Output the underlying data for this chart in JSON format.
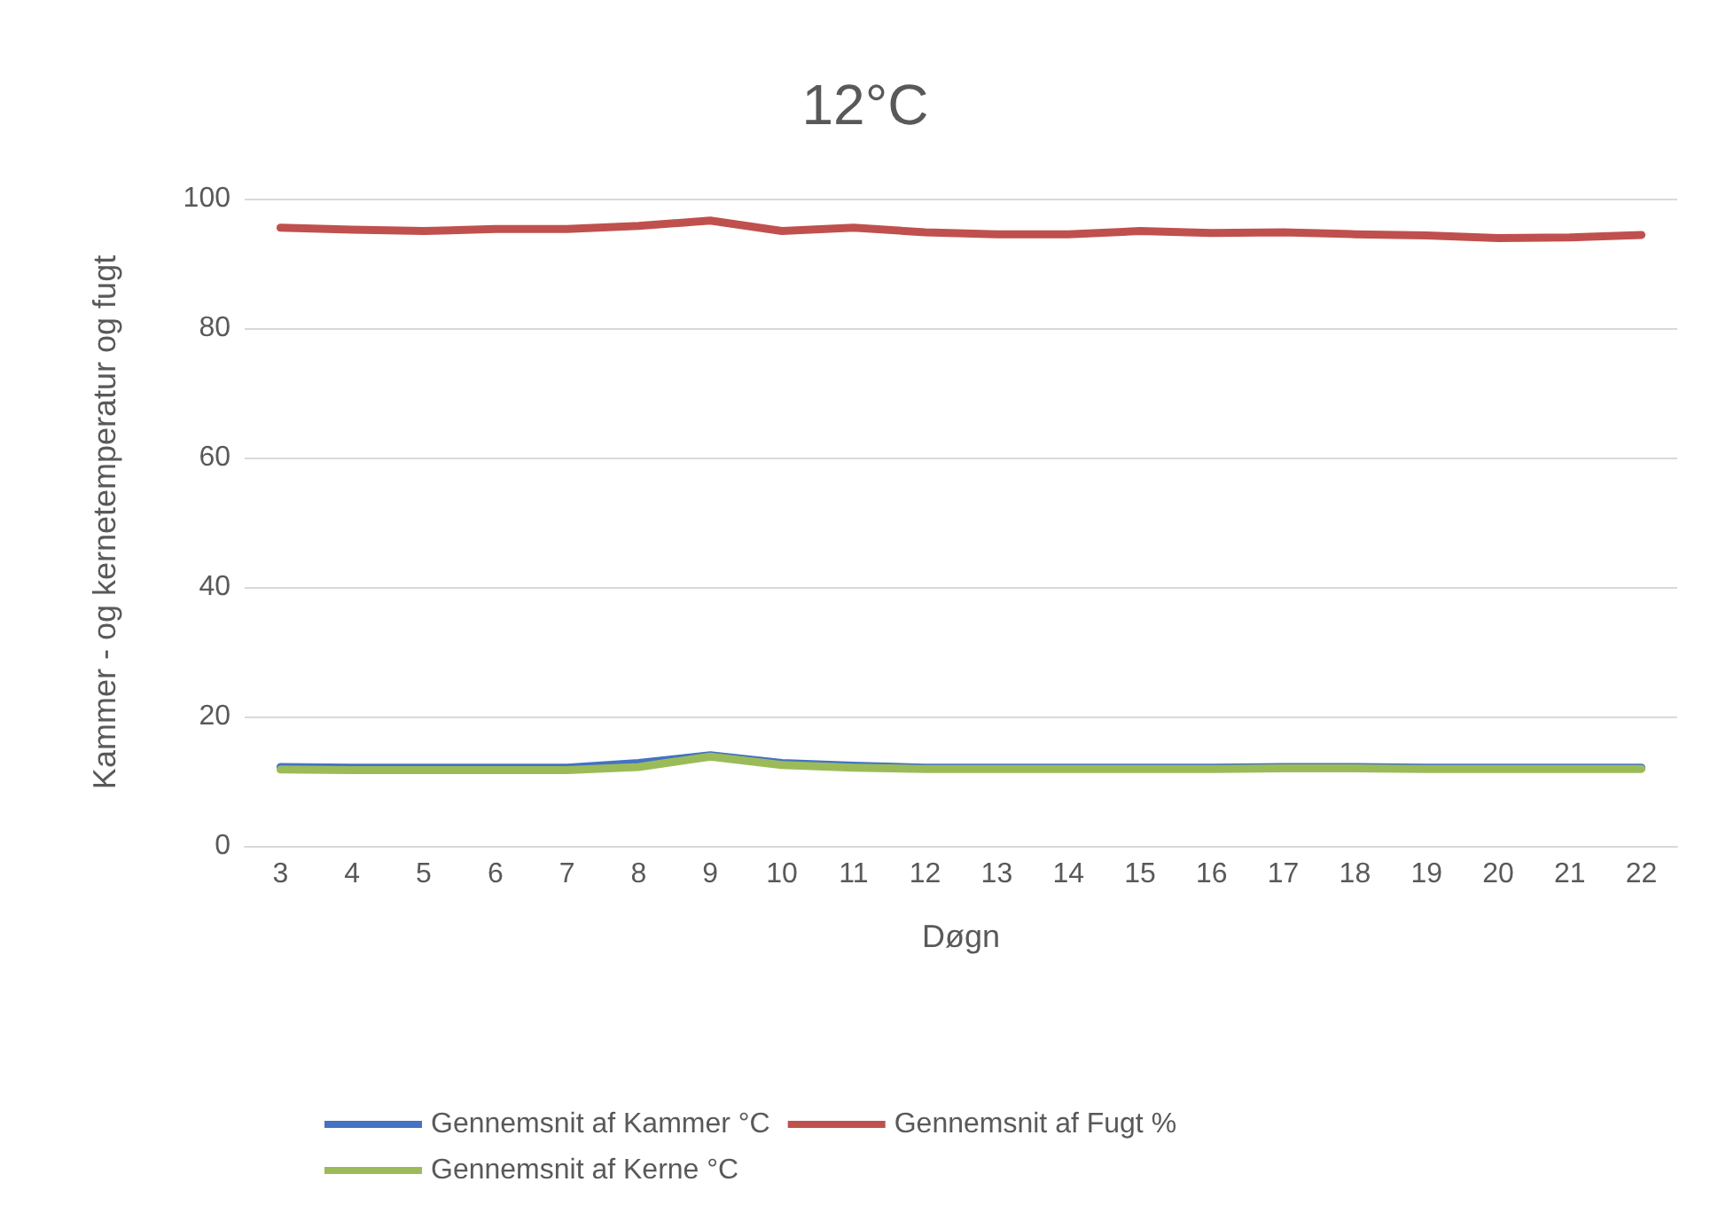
{
  "chart_data": {
    "type": "line",
    "title": "12°C",
    "xlabel": "Døgn",
    "ylabel": "Kammer - og kernetemperatur og fugt",
    "categories": [
      "3",
      "4",
      "5",
      "6",
      "7",
      "8",
      "9",
      "10",
      "11",
      "12",
      "13",
      "14",
      "15",
      "16",
      "17",
      "18",
      "19",
      "20",
      "21",
      "22"
    ],
    "series": [
      {
        "name": "Gennemsnit af Kammer °C",
        "color": "#4472c4",
        "values": [
          12.2,
          12.1,
          12.1,
          12.1,
          12.1,
          12.8,
          14.0,
          12.8,
          12.4,
          12.1,
          12.1,
          12.1,
          12.1,
          12.1,
          12.2,
          12.2,
          12.1,
          12.1,
          12.1,
          12.1
        ]
      },
      {
        "name": "Gennemsnit af Fugt %",
        "color": "#c0504d",
        "values": [
          95.5,
          95.2,
          95.0,
          95.3,
          95.3,
          95.8,
          96.6,
          95.0,
          95.5,
          94.8,
          94.5,
          94.5,
          95.0,
          94.7,
          94.8,
          94.5,
          94.3,
          93.9,
          94.0,
          94.4
        ]
      },
      {
        "name": "Gennemsnit af Kerne °C",
        "color": "#9bbb59",
        "values": [
          11.8,
          11.7,
          11.7,
          11.7,
          11.7,
          12.2,
          13.8,
          12.5,
          12.1,
          11.9,
          11.9,
          11.9,
          11.9,
          11.9,
          12.0,
          12.0,
          11.9,
          11.9,
          11.9,
          11.9
        ]
      }
    ],
    "ylim": [
      0,
      100
    ],
    "yticks": [
      0,
      20,
      40,
      60,
      80,
      100
    ],
    "grid": "y",
    "legend": "bottom",
    "marker": "none",
    "line_style": "solid"
  }
}
